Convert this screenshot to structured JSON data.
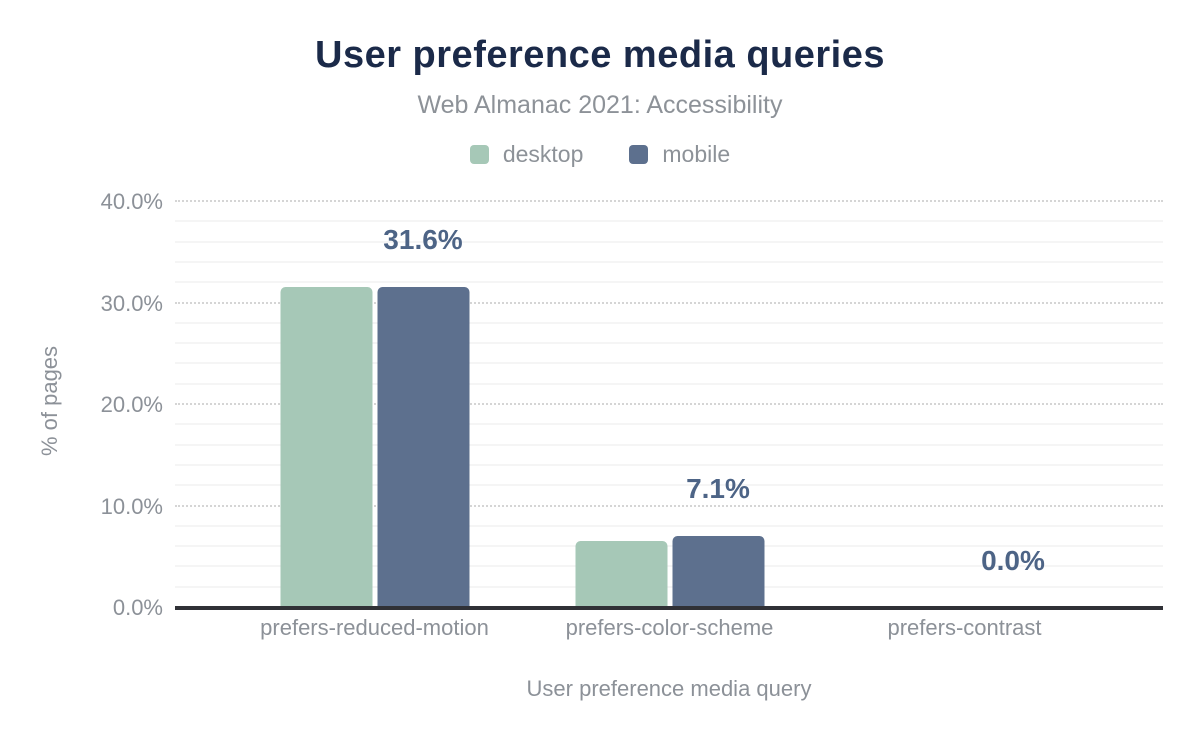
{
  "chart_data": {
    "type": "bar",
    "title": "User preference media queries",
    "subtitle": "Web Almanac 2021: Accessibility",
    "categories": [
      "prefers-reduced-motion",
      "prefers-color-scheme",
      "prefers-contrast"
    ],
    "series": [
      {
        "name": "desktop",
        "color": "#a6c8b7",
        "values": [
          31.6,
          6.6,
          0.0
        ]
      },
      {
        "name": "mobile",
        "color": "#5d708e",
        "values": [
          31.6,
          7.1,
          0.0
        ]
      }
    ],
    "data_labels": [
      "31.6%",
      "7.1%",
      "0.0%"
    ],
    "xlabel": "User preference media query",
    "ylabel": "% of pages",
    "yticks": [
      "0.0%",
      "10.0%",
      "20.0%",
      "30.0%",
      "40.0%"
    ],
    "ylim": [
      0,
      40.7
    ],
    "grid": {
      "minor_step_percent": 2,
      "major_step_percent": 10,
      "major_style": "dotted"
    },
    "legend_position": "top",
    "colors": {
      "title_text": "#1b2a49",
      "secondary_text": "#8c9198",
      "value_label_text": "#4d6486",
      "axis_line": "#303136",
      "minor_grid": "#f5f5f5",
      "major_grid": "#d5d5d5"
    }
  }
}
